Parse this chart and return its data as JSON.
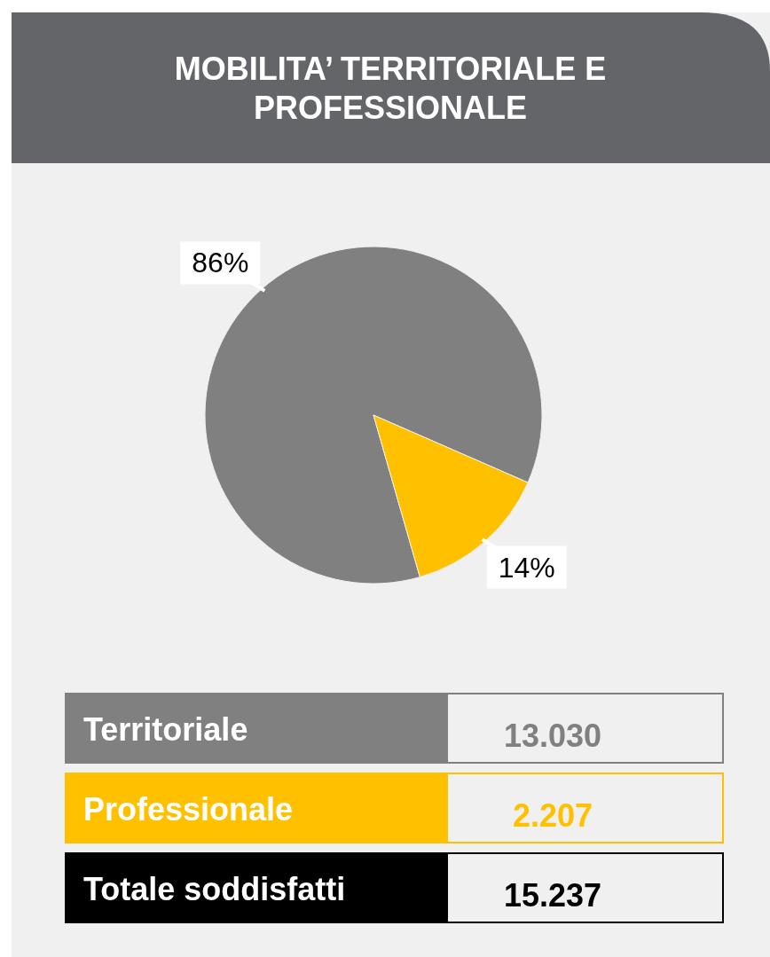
{
  "chart_data": {
    "type": "pie",
    "title": "MOBILITA’ TERRITORIALE E PROFESSIONALE",
    "categories": [
      "Territoriale",
      "Professionale"
    ],
    "values": [
      86,
      14
    ],
    "colors": [
      "#808080",
      "#ffc000"
    ],
    "value_labels": [
      "86%",
      "14%"
    ],
    "legend": "bottom",
    "annotations": [
      "13.030",
      "2.207",
      "Totale soddisfatti",
      "15.237"
    ]
  }
}
